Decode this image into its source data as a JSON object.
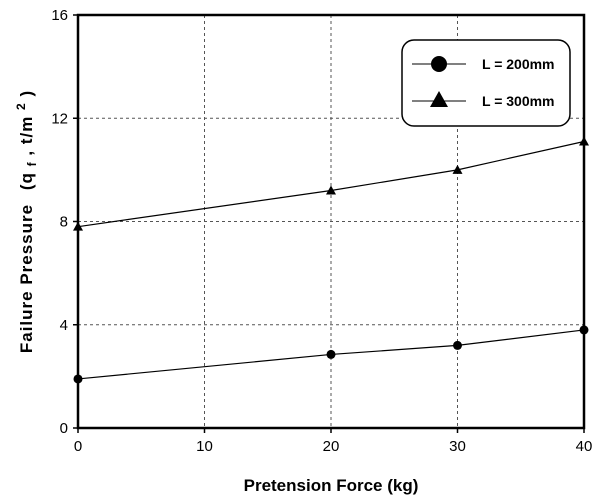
{
  "chart_data": {
    "type": "line",
    "x": [
      0,
      20,
      30,
      40
    ],
    "xlabel": "Pretension Force (kg)",
    "ylabel": {
      "main": "Failure Pressure",
      "open": "(q",
      "sub": "f",
      "mid": ", t/m",
      "sup": "2",
      "close": ")"
    },
    "xlim": [
      0,
      40
    ],
    "ylim": [
      0,
      16
    ],
    "xticks": [
      0,
      10,
      20,
      30,
      40
    ],
    "yticks": [
      0,
      4,
      8,
      12,
      16
    ],
    "grid": true,
    "legend_position": "top-right",
    "series": [
      {
        "name": "L = 200mm",
        "marker": "circle",
        "values": [
          1.9,
          2.85,
          3.2,
          3.8
        ]
      },
      {
        "name": "L = 300mm",
        "marker": "triangle",
        "values": [
          7.8,
          9.2,
          10.0,
          11.1
        ]
      }
    ]
  }
}
